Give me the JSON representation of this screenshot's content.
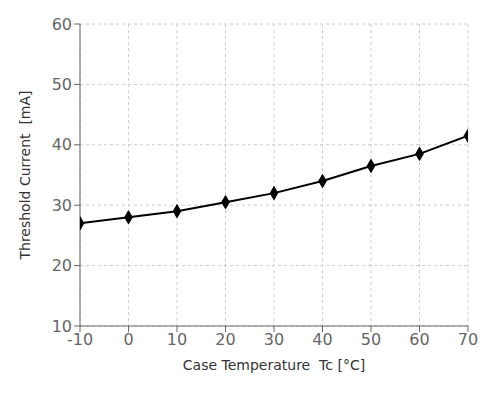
{
  "chart_data": {
    "type": "line",
    "x": [
      -10,
      0,
      10,
      20,
      30,
      40,
      50,
      60,
      70
    ],
    "values": [
      27.0,
      28.0,
      29.0,
      30.5,
      32.0,
      34.0,
      36.5,
      38.5,
      41.5
    ],
    "xlabel": "Case Temperature  Tc [°C]",
    "ylabel": "Threshold Current  [mA]",
    "xlim": [
      -10,
      70
    ],
    "ylim": [
      10,
      60
    ],
    "xticks": [
      -10,
      0,
      10,
      20,
      30,
      40,
      50,
      60,
      70
    ],
    "yticks": [
      10,
      20,
      30,
      40,
      50,
      60
    ],
    "grid": true,
    "color": "#000000",
    "marker": "diamond"
  }
}
